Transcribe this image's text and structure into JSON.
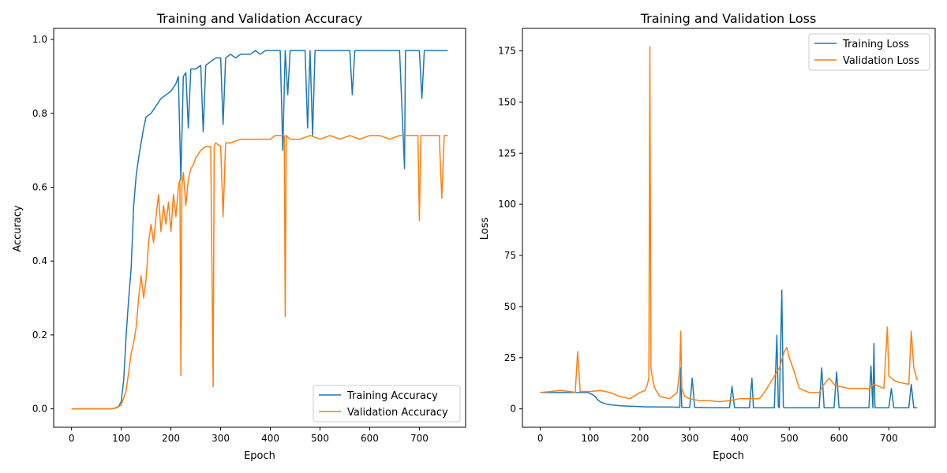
{
  "chart_data": [
    {
      "type": "line",
      "title": "Training and Validation Accuracy",
      "xlabel": "Epoch",
      "ylabel": "Accuracy",
      "xlim": [
        -36,
        793
      ],
      "ylim": [
        -0.05,
        1.03
      ],
      "xticks": [
        0,
        100,
        200,
        300,
        400,
        500,
        600,
        700
      ],
      "yticks": [
        0.0,
        0.2,
        0.4,
        0.6,
        0.8,
        1.0
      ],
      "ytick_labels": [
        "0.0",
        "0.2",
        "0.4",
        "0.6",
        "0.8",
        "1.0"
      ],
      "grid": false,
      "legend_position": "lower-right",
      "series": [
        {
          "name": "Training Accuracy",
          "color": "#1f77b4",
          "x": [
            0,
            20,
            40,
            60,
            80,
            90,
            95,
            100,
            105,
            110,
            115,
            120,
            125,
            130,
            135,
            140,
            145,
            150,
            160,
            170,
            180,
            190,
            200,
            210,
            215,
            220,
            225,
            230,
            235,
            240,
            250,
            260,
            265,
            270,
            280,
            290,
            300,
            305,
            310,
            320,
            330,
            340,
            350,
            360,
            370,
            380,
            390,
            400,
            410,
            420,
            425,
            430,
            435,
            440,
            450,
            460,
            470,
            475,
            480,
            485,
            490,
            500,
            520,
            540,
            560,
            565,
            570,
            580,
            590,
            600,
            610,
            620,
            640,
            660,
            670,
            672,
            680,
            700,
            705,
            710,
            720,
            730,
            740,
            750,
            757
          ],
          "y": [
            0.0,
            0.0,
            0.0,
            0.0,
            0.0,
            0.003,
            0.007,
            0.02,
            0.08,
            0.2,
            0.3,
            0.38,
            0.55,
            0.63,
            0.68,
            0.72,
            0.76,
            0.79,
            0.8,
            0.82,
            0.84,
            0.85,
            0.86,
            0.88,
            0.9,
            0.62,
            0.9,
            0.91,
            0.76,
            0.92,
            0.92,
            0.93,
            0.75,
            0.93,
            0.94,
            0.95,
            0.95,
            0.77,
            0.95,
            0.96,
            0.95,
            0.96,
            0.96,
            0.96,
            0.97,
            0.96,
            0.97,
            0.97,
            0.97,
            0.97,
            0.7,
            0.97,
            0.85,
            0.97,
            0.97,
            0.97,
            0.97,
            0.76,
            0.97,
            0.74,
            0.97,
            0.97,
            0.97,
            0.97,
            0.97,
            0.85,
            0.97,
            0.97,
            0.97,
            0.97,
            0.97,
            0.97,
            0.97,
            0.97,
            0.65,
            0.97,
            0.97,
            0.97,
            0.84,
            0.97,
            0.97,
            0.97,
            0.97,
            0.97,
            0.97
          ]
        },
        {
          "name": "Validation Accuracy",
          "color": "#ff7f0e",
          "x": [
            0,
            20,
            40,
            60,
            80,
            90,
            100,
            105,
            110,
            115,
            120,
            125,
            130,
            135,
            140,
            145,
            150,
            155,
            160,
            165,
            170,
            175,
            180,
            185,
            190,
            195,
            200,
            205,
            210,
            215,
            218,
            220,
            222,
            225,
            230,
            235,
            240,
            245,
            250,
            260,
            270,
            280,
            285,
            287,
            290,
            300,
            305,
            310,
            320,
            340,
            360,
            380,
            400,
            410,
            420,
            428,
            430,
            432,
            440,
            460,
            480,
            500,
            520,
            540,
            560,
            580,
            600,
            620,
            640,
            660,
            680,
            697,
            700,
            703,
            720,
            740,
            745,
            750,
            757
          ],
          "y": [
            0.0,
            0.0,
            0.0,
            0.0,
            0.0,
            0.002,
            0.01,
            0.03,
            0.05,
            0.1,
            0.15,
            0.18,
            0.22,
            0.3,
            0.36,
            0.3,
            0.35,
            0.45,
            0.5,
            0.45,
            0.52,
            0.58,
            0.48,
            0.55,
            0.5,
            0.56,
            0.48,
            0.58,
            0.52,
            0.6,
            0.62,
            0.09,
            0.6,
            0.64,
            0.55,
            0.62,
            0.65,
            0.66,
            0.68,
            0.7,
            0.71,
            0.71,
            0.06,
            0.71,
            0.72,
            0.71,
            0.52,
            0.72,
            0.72,
            0.73,
            0.73,
            0.73,
            0.73,
            0.74,
            0.74,
            0.74,
            0.25,
            0.74,
            0.73,
            0.73,
            0.74,
            0.73,
            0.74,
            0.73,
            0.74,
            0.73,
            0.74,
            0.74,
            0.73,
            0.74,
            0.74,
            0.74,
            0.51,
            0.74,
            0.74,
            0.74,
            0.57,
            0.74,
            0.74
          ]
        }
      ]
    },
    {
      "type": "line",
      "title": "Training and Validation Loss",
      "xlabel": "Epoch",
      "ylabel": "Loss",
      "xlim": [
        -36,
        793
      ],
      "ylim": [
        -9,
        186
      ],
      "xticks": [
        0,
        100,
        200,
        300,
        400,
        500,
        600,
        700
      ],
      "yticks": [
        0,
        25,
        50,
        75,
        100,
        125,
        150,
        175
      ],
      "ytick_labels": [
        "0",
        "25",
        "50",
        "75",
        "100",
        "125",
        "150",
        "175"
      ],
      "grid": false,
      "legend_position": "upper-right",
      "series": [
        {
          "name": "Training Loss",
          "color": "#1f77b4",
          "x": [
            0,
            20,
            40,
            60,
            80,
            95,
            100,
            105,
            110,
            115,
            120,
            130,
            140,
            150,
            160,
            180,
            190,
            200,
            210,
            220,
            240,
            260,
            280,
            282,
            284,
            300,
            305,
            310,
            320,
            340,
            360,
            380,
            385,
            390,
            400,
            420,
            425,
            428,
            440,
            450,
            460,
            470,
            475,
            478,
            480,
            485,
            488,
            490,
            500,
            520,
            540,
            560,
            565,
            570,
            580,
            590,
            595,
            600,
            610,
            620,
            640,
            660,
            664,
            668,
            670,
            672,
            675,
            680,
            700,
            705,
            710,
            720,
            730,
            740,
            745,
            750,
            757
          ],
          "y": [
            8,
            8,
            8,
            8,
            8,
            8,
            7.5,
            7,
            6,
            4.5,
            3.5,
            2.5,
            2,
            1.8,
            1.5,
            1.3,
            1.2,
            1.1,
            1,
            1,
            0.9,
            0.9,
            0.8,
            20,
            0.8,
            0.7,
            15,
            0.7,
            0.7,
            0.6,
            0.6,
            0.6,
            11,
            0.6,
            0.6,
            0.5,
            15,
            0.5,
            0.5,
            0.5,
            0.5,
            0.5,
            36,
            1,
            0.5,
            58,
            1,
            0.5,
            0.5,
            0.5,
            0.5,
            0.5,
            20,
            0.5,
            0.5,
            0.5,
            18,
            0.5,
            0.5,
            0.5,
            0.5,
            0.5,
            21,
            0.5,
            32,
            0.5,
            0.5,
            0.5,
            0.5,
            10,
            0.5,
            0.5,
            0.5,
            0.5,
            12,
            0.5,
            0.5
          ]
        },
        {
          "name": "Validation Loss",
          "color": "#ff7f0e",
          "x": [
            0,
            20,
            40,
            60,
            70,
            75,
            80,
            100,
            120,
            140,
            160,
            180,
            200,
            210,
            215,
            218,
            220,
            222,
            225,
            230,
            240,
            260,
            275,
            280,
            282,
            284,
            290,
            300,
            320,
            340,
            360,
            380,
            400,
            420,
            440,
            450,
            460,
            470,
            480,
            490,
            495,
            500,
            510,
            520,
            540,
            560,
            570,
            580,
            590,
            600,
            620,
            640,
            660,
            670,
            680,
            690,
            697,
            700,
            710,
            720,
            740,
            745,
            750,
            757
          ],
          "y": [
            8,
            8.5,
            9,
            8.5,
            8,
            28,
            8.5,
            8.5,
            9,
            8,
            6,
            5,
            8,
            9,
            12,
            15,
            177,
            20,
            15,
            10,
            6,
            5,
            8,
            20,
            38,
            10,
            6,
            5,
            4,
            4,
            3.5,
            4,
            5,
            5,
            5,
            8,
            12,
            16,
            20,
            28,
            30,
            25,
            18,
            10,
            8,
            8,
            12,
            15,
            12,
            11,
            10,
            10,
            10,
            12,
            11,
            10,
            40,
            16,
            14,
            13,
            12,
            38,
            20,
            14
          ]
        }
      ]
    }
  ]
}
